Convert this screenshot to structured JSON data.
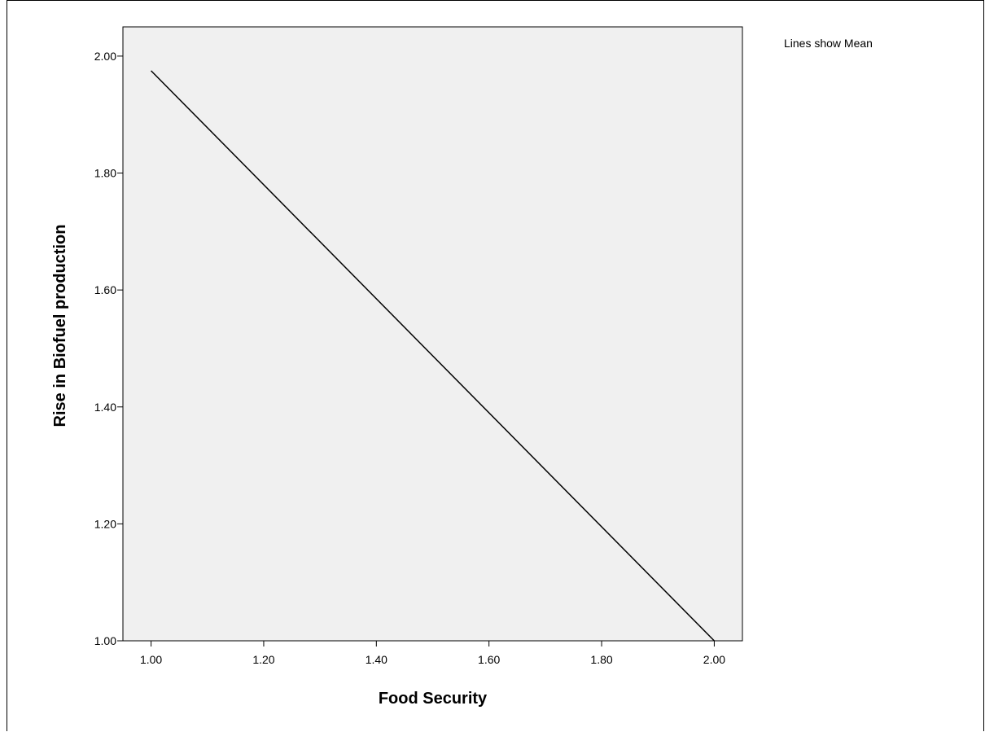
{
  "chart_data": {
    "type": "line",
    "xlabel": "Food Security",
    "ylabel": "Rise in Biofuel production",
    "annotation": "Lines show Mean",
    "xlim": [
      0.95,
      2.05
    ],
    "ylim": [
      1.0,
      2.05
    ],
    "x_ticks": [
      "1.00",
      "1.20",
      "1.40",
      "1.60",
      "1.80",
      "2.00"
    ],
    "x_tick_values": [
      1.0,
      1.2,
      1.4,
      1.6,
      1.8,
      2.0
    ],
    "y_ticks": [
      "1.00",
      "1.20",
      "1.40",
      "1.60",
      "1.80",
      "2.00"
    ],
    "y_tick_values": [
      1.0,
      1.2,
      1.4,
      1.6,
      1.8,
      2.0
    ],
    "series": [
      {
        "points": [
          {
            "x": 1.0,
            "y": 1.975
          },
          {
            "x": 2.0,
            "y": 1.0
          }
        ],
        "color": "#000000"
      }
    ],
    "plot_background": "#f0f0f0",
    "grid": false
  }
}
